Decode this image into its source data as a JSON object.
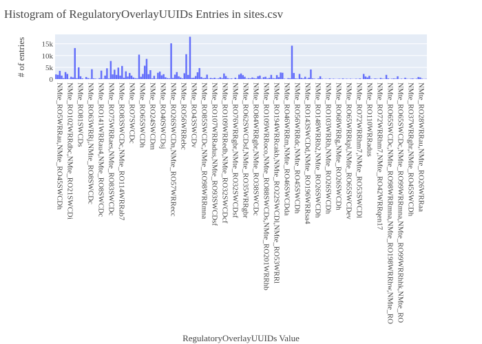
{
  "chart_data": {
    "type": "bar",
    "title": "Histogram of RegulatoryOverlayUUIDs Entries in sites.csv",
    "xlabel": "RegulatoryOverlayUUIDs Value",
    "ylabel": "# of entries",
    "ylim": [
      0,
      19000
    ],
    "yticks": [
      0,
      5000,
      10000,
      15000
    ],
    "ytick_labels": [
      "0",
      "5k",
      "10k",
      "15k"
    ],
    "grid": true,
    "legend": "none",
    "bar_color": "#636efa",
    "plot_bgcolor": "#e5ecf6",
    "tick_labels": [
      "NMte_RO5WRRau,NMte_RO45SWCDh",
      "NMte_RO102WRRdbc,NMte_RO21SWCDi",
      "NMte_RO81SWCDs",
      "NMte_RO63WRRj,NMte_RO8SWCDc",
      "NMte_RO141WRRau4,NMte_RO8SWCDc",
      "NMte_RO75WRRaes,NMte_RO83SWCDc",
      "NMte_RO83SWCDc,NMte_RO114WRRab7",
      "NMte_RO7SWCDc",
      "NMte_RO65SWCDh",
      "NMte_RO24SWCDm",
      "NMte_RO40SWCDsj",
      "NMte_RO26SWCDn,NMte_RO57WRRecc",
      "NMte_RO56WRRebc",
      "NMte_RO43SWCDv",
      "NMte_RO85SWCDc,NMte_RO98WRRmna",
      "NMte_RO107WRRadus,NMte_RO93SWCDsf",
      "NMte_RO109WRRedb,NMte_RO32SWCDcf",
      "NMte_RO76WRRgbr,NMte_RO32SWCDsf",
      "NMte_RO62SWCDsf,NMte_RO35WRRgbr",
      "NMte_RO84WRRgbr,NMte_RO38SWCDc",
      "NMte_RO109WRRoco,NMte_RO88SWCDs,NMte_RO201WRRhb",
      "NMte_RO194WRRcakb,NMte_RO22SWCDl,NMte_RO53WRRl",
      "NMte_RO46WRRm,NMte_RO46SWCDda",
      "NMte_RO56WRRdc,NMte_RO45SWCDh",
      "NMte_RO143SWCDd,NMte_RO196WRRsa4",
      "NMte_RO148WRRb2,NMte_RO26SWCDh",
      "NMte_RO103WRRh,NMte_RO26SWCDh",
      "NMte_RO68WRRg,NMte_RO26SWCDh",
      "NMte_RO65WRRkpl,NMte_RO65SWCDev",
      "NMte_RO72WRRhm7,NMte_RO53SWCDl",
      "NMte_RO110WRRadus",
      "NMte_RO72WRRhm7,NMte_RO42WRRqen17",
      "NMte_RO65SWCDc,NMte_RO98WRRmna,NMte_RO198WRRhw,NMte_RO",
      "NMte_RO65SWCDc,NMte_RO99WRRmna,NMte_RO99WRRhhk,NMte_RO",
      "NMte_RO37WRRghr,NMte_RO45SWCDh",
      "NMte_RO28WRRau,NMte_RO26WRRaa"
    ],
    "values": [
      2000,
      1800,
      3500,
      1500,
      400,
      3000,
      2200,
      200,
      1000,
      700,
      13200,
      400,
      5000,
      1200,
      300,
      100,
      900,
      400,
      200,
      4200,
      300,
      200,
      100,
      400,
      3600,
      200,
      1500,
      4600,
      300,
      7700,
      2000,
      4000,
      1800,
      4900,
      1500,
      5600,
      600,
      3300,
      1100,
      2600,
      1500,
      700,
      400,
      300,
      10400,
      1000,
      2200,
      5700,
      8600,
      2100,
      3800,
      300,
      1400,
      200,
      2700,
      3200,
      1600,
      2100,
      800,
      400,
      300,
      15200,
      500,
      1900,
      3000,
      1200,
      700,
      300,
      2500,
      10600,
      1800,
      18000,
      500,
      600,
      1300,
      2900,
      4700,
      900,
      400,
      500,
      1900,
      200,
      500,
      300,
      600,
      200,
      300,
      800,
      400,
      2400,
      1300,
      400,
      200,
      300,
      100,
      600,
      200,
      1900,
      2400,
      1700,
      1000,
      200,
      400,
      300,
      700,
      400,
      300,
      1200,
      1500,
      200,
      800,
      1000,
      300,
      500,
      1800,
      400,
      300,
      1700,
      800,
      2800,
      2700,
      200,
      100,
      400,
      300,
      14200,
      2600,
      300,
      200,
      2200,
      500,
      300,
      1000,
      200,
      600,
      4100,
      300,
      200,
      100,
      300,
      1200,
      200,
      100,
      150,
      100,
      300,
      100,
      200,
      100,
      100,
      200,
      100,
      300,
      100,
      200,
      100,
      200,
      100,
      100,
      200,
      100,
      300,
      100,
      2200,
      1100,
      700,
      1400,
      200,
      100,
      300,
      200,
      100,
      500,
      200,
      150,
      1800,
      300,
      100,
      200,
      300,
      200,
      1200,
      100,
      200,
      100,
      600,
      150,
      100,
      200,
      300,
      100,
      200,
      900,
      700,
      200,
      100,
      150
    ]
  }
}
